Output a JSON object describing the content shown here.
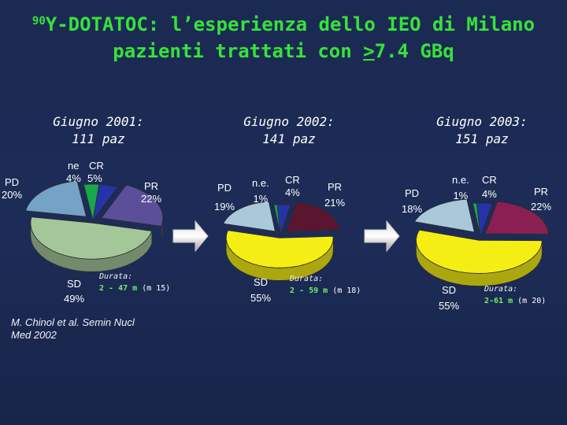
{
  "title": {
    "sup": "90",
    "line1_rest": "Y-DOTATOC: l’esperienza dello IEO di Milano",
    "line2_pre": "pazienti trattati con ",
    "line2_u": ">",
    "line2_post": "7.4 GBq"
  },
  "chart_data": [
    {
      "type": "pie",
      "title": "Giugno 2001:",
      "subtitle": "111 paz",
      "categories": [
        "ne",
        "CR",
        "PR",
        "SD",
        "PD"
      ],
      "values": [
        4,
        5,
        22,
        49,
        20
      ],
      "value_labels": [
        "4%",
        "5%",
        "22%",
        "49%",
        "20%"
      ],
      "colors": [
        "#18a84a",
        "#2433a8",
        "#5b4f9a",
        "#a4c79a",
        "#74a3c5"
      ]
    },
    {
      "type": "pie",
      "title": "Giugno 2002:",
      "subtitle": "141 paz",
      "categories": [
        "n.e.",
        "CR",
        "PR",
        "SD",
        "PD"
      ],
      "values": [
        1,
        4,
        21,
        55,
        19
      ],
      "value_labels": [
        "1%",
        "4%",
        "21%",
        "55%",
        "19%"
      ],
      "colors": [
        "#18a84a",
        "#2433a8",
        "#5a1630",
        "#f5ee14",
        "#a9c9da"
      ]
    },
    {
      "type": "pie",
      "title": "Giugno 2003:",
      "subtitle": "151 paz",
      "categories": [
        "n.e.",
        "CR",
        "PR",
        "SD",
        "PD"
      ],
      "values": [
        1,
        4,
        22,
        55,
        18
      ],
      "value_labels": [
        "1%",
        "4%",
        "22%",
        "55%",
        "18%"
      ],
      "colors": [
        "#18a84a",
        "#2433a8",
        "#8a1f52",
        "#f5ee14",
        "#a9c9da"
      ]
    }
  ],
  "durations": [
    {
      "label": "Durata:",
      "range": "2 - 47 m",
      "median": "(m 15)"
    },
    {
      "label": "Durata:",
      "range": "2 - 59 m",
      "median": "(m 18)"
    },
    {
      "label": "Durata:",
      "range": "2-61 m",
      "median": "(m 20)"
    }
  ],
  "citation": {
    "line1": "M. Chinol et al. Semin Nucl",
    "line2": "Med 2002"
  }
}
